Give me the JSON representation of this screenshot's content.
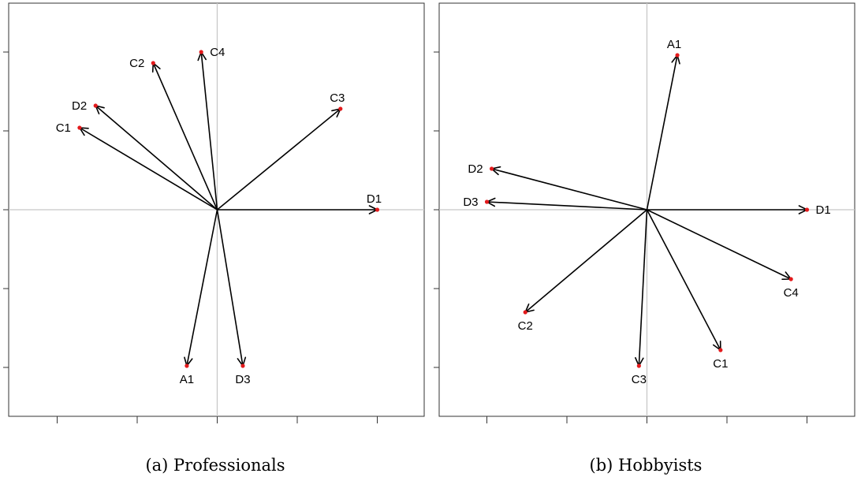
{
  "figure": {
    "captions": [
      "(a) Professionals",
      "(b) Hobbyists"
    ]
  },
  "chart_data": [
    {
      "type": "scatter",
      "title": "(a) Professionals",
      "xlim": [
        -1.0,
        1.0
      ],
      "ylim": [
        -1.0,
        1.0
      ],
      "grid": false,
      "zero_lines": true,
      "axis_tick_labels_shown": false,
      "marker_color": "#e31a1c",
      "arrow_color": "#000000",
      "points": [
        {
          "label": "C4",
          "x": -0.1,
          "y": 1.0,
          "label_pos": "right"
        },
        {
          "label": "C2",
          "x": -0.4,
          "y": 0.93,
          "label_pos": "left"
        },
        {
          "label": "D2",
          "x": -0.76,
          "y": 0.66,
          "label_pos": "left"
        },
        {
          "label": "C1",
          "x": -0.86,
          "y": 0.52,
          "label_pos": "left"
        },
        {
          "label": "C3",
          "x": 0.77,
          "y": 0.64,
          "label_pos": "above"
        },
        {
          "label": "D1",
          "x": 1.0,
          "y": 0.0,
          "label_pos": "above"
        },
        {
          "label": "A1",
          "x": -0.19,
          "y": -0.99,
          "label_pos": "below"
        },
        {
          "label": "D3",
          "x": 0.16,
          "y": -0.99,
          "label_pos": "below"
        }
      ]
    },
    {
      "type": "scatter",
      "title": "(b) Hobbyists",
      "xlim": [
        -1.0,
        1.0
      ],
      "ylim": [
        -1.0,
        1.0
      ],
      "grid": false,
      "zero_lines": true,
      "axis_tick_labels_shown": false,
      "marker_color": "#e31a1c",
      "arrow_color": "#000000",
      "points": [
        {
          "label": "A1",
          "x": 0.19,
          "y": 0.98,
          "label_pos": "above"
        },
        {
          "label": "D2",
          "x": -0.97,
          "y": 0.26,
          "label_pos": "left"
        },
        {
          "label": "D3",
          "x": -1.0,
          "y": 0.05,
          "label_pos": "left"
        },
        {
          "label": "D1",
          "x": 1.0,
          "y": 0.0,
          "label_pos": "right"
        },
        {
          "label": "C4",
          "x": 0.9,
          "y": -0.44,
          "label_pos": "below"
        },
        {
          "label": "C2",
          "x": -0.76,
          "y": -0.65,
          "label_pos": "below"
        },
        {
          "label": "C3",
          "x": -0.05,
          "y": -0.99,
          "label_pos": "below"
        },
        {
          "label": "C1",
          "x": 0.46,
          "y": -0.89,
          "label_pos": "below"
        }
      ]
    }
  ]
}
